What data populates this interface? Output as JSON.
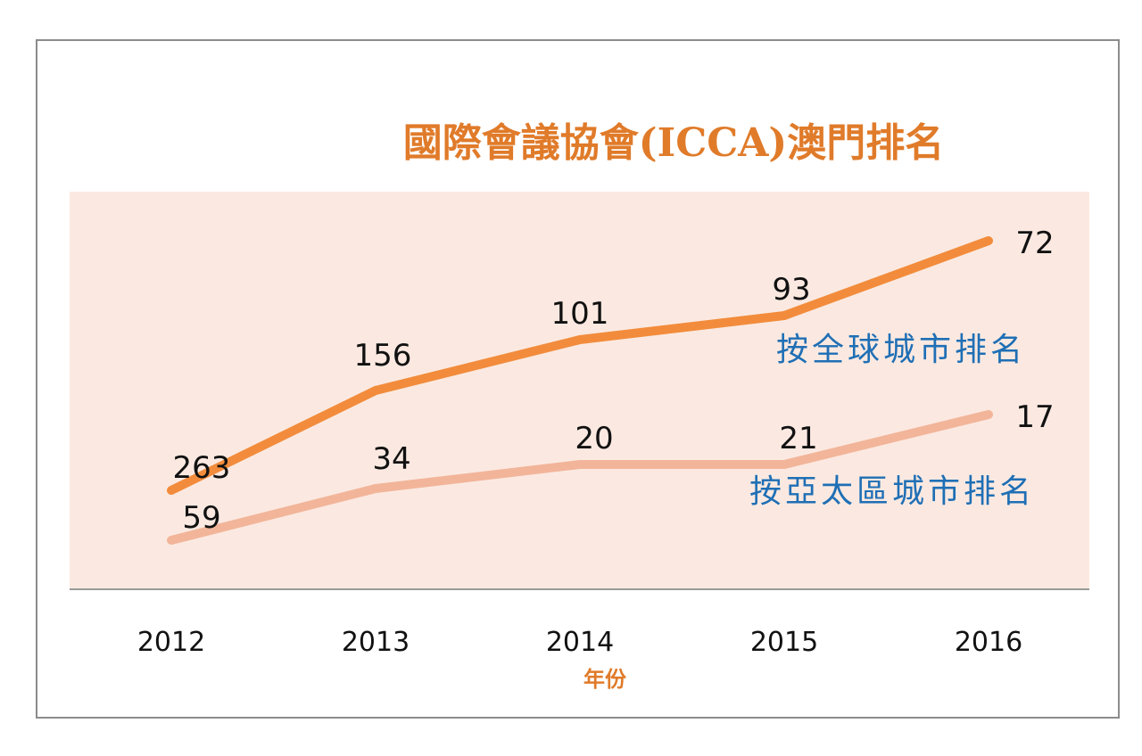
{
  "chart_data": {
    "type": "line",
    "title": "國際會議協會(ICCA)澳門排名",
    "xlabel": "年份",
    "ylabel": "",
    "categories": [
      "2012",
      "2013",
      "2014",
      "2015",
      "2016"
    ],
    "series": [
      {
        "name": "按全球城市排名",
        "values": [
          263,
          156,
          101,
          93,
          72
        ]
      },
      {
        "name": "按亞太區城市排名",
        "values": [
          59,
          34,
          20,
          21,
          17
        ]
      }
    ],
    "grid": false,
    "legend": "inline-right"
  },
  "colors": {
    "title": "#e07b2a",
    "plot_background": "#fbe9e1",
    "series_global": "#f28c3c",
    "series_asia": "#f2b59a",
    "series_label": "#1f6fb5",
    "axis_title": "#e07b2a",
    "baseline": "#9a9a9a"
  }
}
